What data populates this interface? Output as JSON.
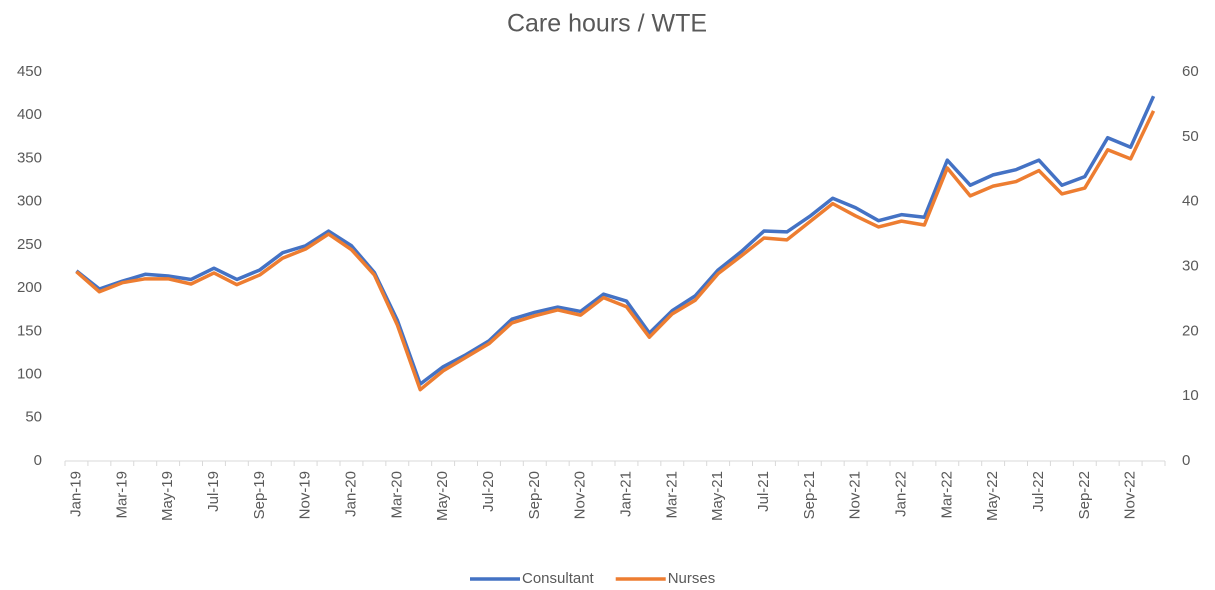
{
  "chart_data": {
    "type": "line",
    "title": "Care hours / WTE",
    "categories": [
      "Jan-19",
      null,
      "Mar-19",
      null,
      "May-19",
      null,
      "Jul-19",
      null,
      "Sep-19",
      null,
      "Nov-19",
      null,
      "Jan-20",
      null,
      "Mar-20",
      null,
      "May-20",
      null,
      "Jul-20",
      null,
      "Sep-20",
      null,
      "Nov-20",
      null,
      "Jan-21",
      null,
      "Mar-21",
      null,
      "May-21",
      null,
      "Jul-21",
      null,
      "Sep-21",
      null,
      "Nov-21",
      null,
      "Jan-22",
      null,
      "Mar-22",
      null,
      "May-22",
      null,
      "Jul-22",
      null,
      "Sep-22",
      null,
      "Nov-22",
      null
    ],
    "series": [
      {
        "name": "Consultant",
        "color": "#4472c4",
        "axis": "y",
        "values": [
          220,
          199,
          208,
          216,
          214,
          210,
          223,
          210,
          221,
          241,
          249,
          266,
          249,
          218,
          163,
          89,
          109,
          123,
          139,
          164,
          172,
          178,
          173,
          193,
          185,
          148,
          174,
          191,
          221,
          242,
          266,
          265,
          283,
          304,
          293,
          278,
          285,
          282,
          348,
          319,
          331,
          337,
          348,
          319,
          329,
          374,
          363,
          422
        ]
      },
      {
        "name": "Nurses",
        "color": "#ed7d31",
        "axis": "y2",
        "values": [
          29.2,
          26.1,
          27.5,
          28.1,
          28.1,
          27.3,
          29.0,
          27.2,
          28.7,
          31.3,
          32.7,
          35.0,
          32.6,
          28.7,
          21.0,
          11.0,
          13.9,
          16.0,
          18.1,
          21.3,
          22.4,
          23.3,
          22.5,
          25.2,
          23.8,
          19.1,
          22.7,
          24.8,
          28.9,
          31.6,
          34.4,
          34.1,
          36.9,
          39.7,
          37.8,
          36.1,
          37.0,
          36.4,
          45.2,
          40.9,
          42.4,
          43.1,
          44.8,
          41.2,
          42.1,
          48.0,
          46.6,
          54.0
        ]
      }
    ],
    "ylim": [
      0,
      450
    ],
    "yticks": [
      0,
      50,
      100,
      150,
      200,
      250,
      300,
      350,
      400,
      450
    ],
    "y2lim": [
      0,
      60
    ],
    "y2ticks": [
      0,
      10,
      20,
      30,
      40,
      50,
      60
    ],
    "grid": false,
    "legend": "bottom"
  }
}
